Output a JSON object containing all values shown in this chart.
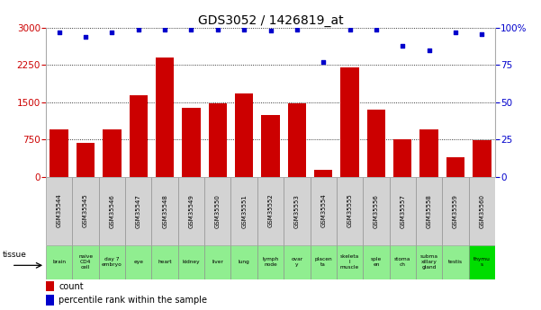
{
  "title": "GDS3052 / 1426819_at",
  "samples": [
    "GSM35544",
    "GSM35545",
    "GSM35546",
    "GSM35547",
    "GSM35548",
    "GSM35549",
    "GSM35550",
    "GSM35551",
    "GSM35552",
    "GSM35553",
    "GSM35554",
    "GSM35555",
    "GSM35556",
    "GSM35557",
    "GSM35558",
    "GSM35559",
    "GSM35560"
  ],
  "counts": [
    950,
    680,
    950,
    1650,
    2400,
    1380,
    1480,
    1680,
    1250,
    1480,
    130,
    2200,
    1350,
    760,
    950,
    400,
    730
  ],
  "percentiles": [
    97,
    94,
    97,
    99,
    99,
    99,
    99,
    99,
    98,
    99,
    77,
    99,
    99,
    88,
    85,
    97,
    96
  ],
  "tissues": [
    "brain",
    "naive\nCD4\ncell",
    "day 7\nembryо",
    "eye",
    "heart",
    "kidney",
    "liver",
    "lung",
    "lymph\nnode",
    "ovar\ny",
    "placen\nta",
    "skeleta\nl\nmuscle",
    "sple\nen",
    "stoma\nch",
    "subma\nxillary\ngland",
    "testis",
    "thymu\ns"
  ],
  "sample_box_color": "#d3d3d3",
  "tissue_box_color": "#90ee90",
  "tissue_box_color_bright": "#00ee00",
  "bar_color": "#cc0000",
  "dot_color": "#0000cc",
  "left_ylim": [
    0,
    3000
  ],
  "right_ylim": [
    0,
    100
  ],
  "left_yticks": [
    0,
    750,
    1500,
    2250,
    3000
  ],
  "right_yticks": [
    0,
    25,
    50,
    75,
    100
  ],
  "title_color": "#000000",
  "legend_count_color": "#cc0000",
  "legend_pct_color": "#0000cc"
}
